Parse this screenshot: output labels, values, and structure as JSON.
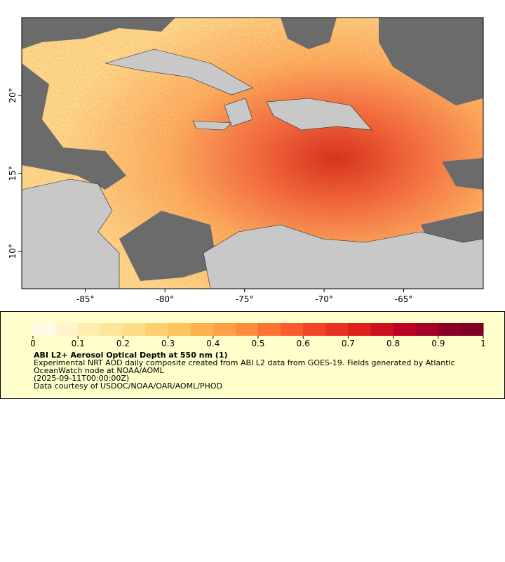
{
  "map": {
    "xlim": [
      -89,
      -60
    ],
    "ylim": [
      7.6,
      25
    ],
    "xticks": [
      {
        "value": -85,
        "label": "-85°"
      },
      {
        "value": -80,
        "label": "-80°"
      },
      {
        "value": -75,
        "label": "-75°"
      },
      {
        "value": -70,
        "label": "-70°"
      },
      {
        "value": -65,
        "label": "-65°"
      }
    ],
    "yticks": [
      {
        "value": 10,
        "label": "10°"
      },
      {
        "value": 15,
        "label": "15°"
      },
      {
        "value": 20,
        "label": "20°"
      }
    ]
  },
  "legend": {
    "lim": [
      0,
      1
    ],
    "ticks": [
      0,
      0.1,
      0.2,
      0.3,
      0.4,
      0.5,
      0.6,
      0.7,
      0.8,
      0.9,
      1
    ],
    "colors": [
      "#fffbe6",
      "#fff4cc",
      "#ffedb0",
      "#fee59a",
      "#fedc84",
      "#fed06e",
      "#fec45c",
      "#feb24c",
      "#fea145",
      "#fd8d3c",
      "#fc7434",
      "#fc5b2e",
      "#f44428",
      "#e93222",
      "#e0201c",
      "#cf1020",
      "#bd0026",
      "#a50026",
      "#8b0026",
      "#800026"
    ],
    "title": "ABI L2+ Aerosol Optical Depth at 550 nm (1)",
    "notes": [
      "Experimental NRT AOD daily composite created from ABI L2 data from GOES-19. Fields generated by Atlantic OceanWatch node at NOAA/AOML",
      "(2025-09-11T00:00:00Z)",
      "Data courtesy of USDOC/NOAA/OAR/AOML/PHOD"
    ]
  }
}
